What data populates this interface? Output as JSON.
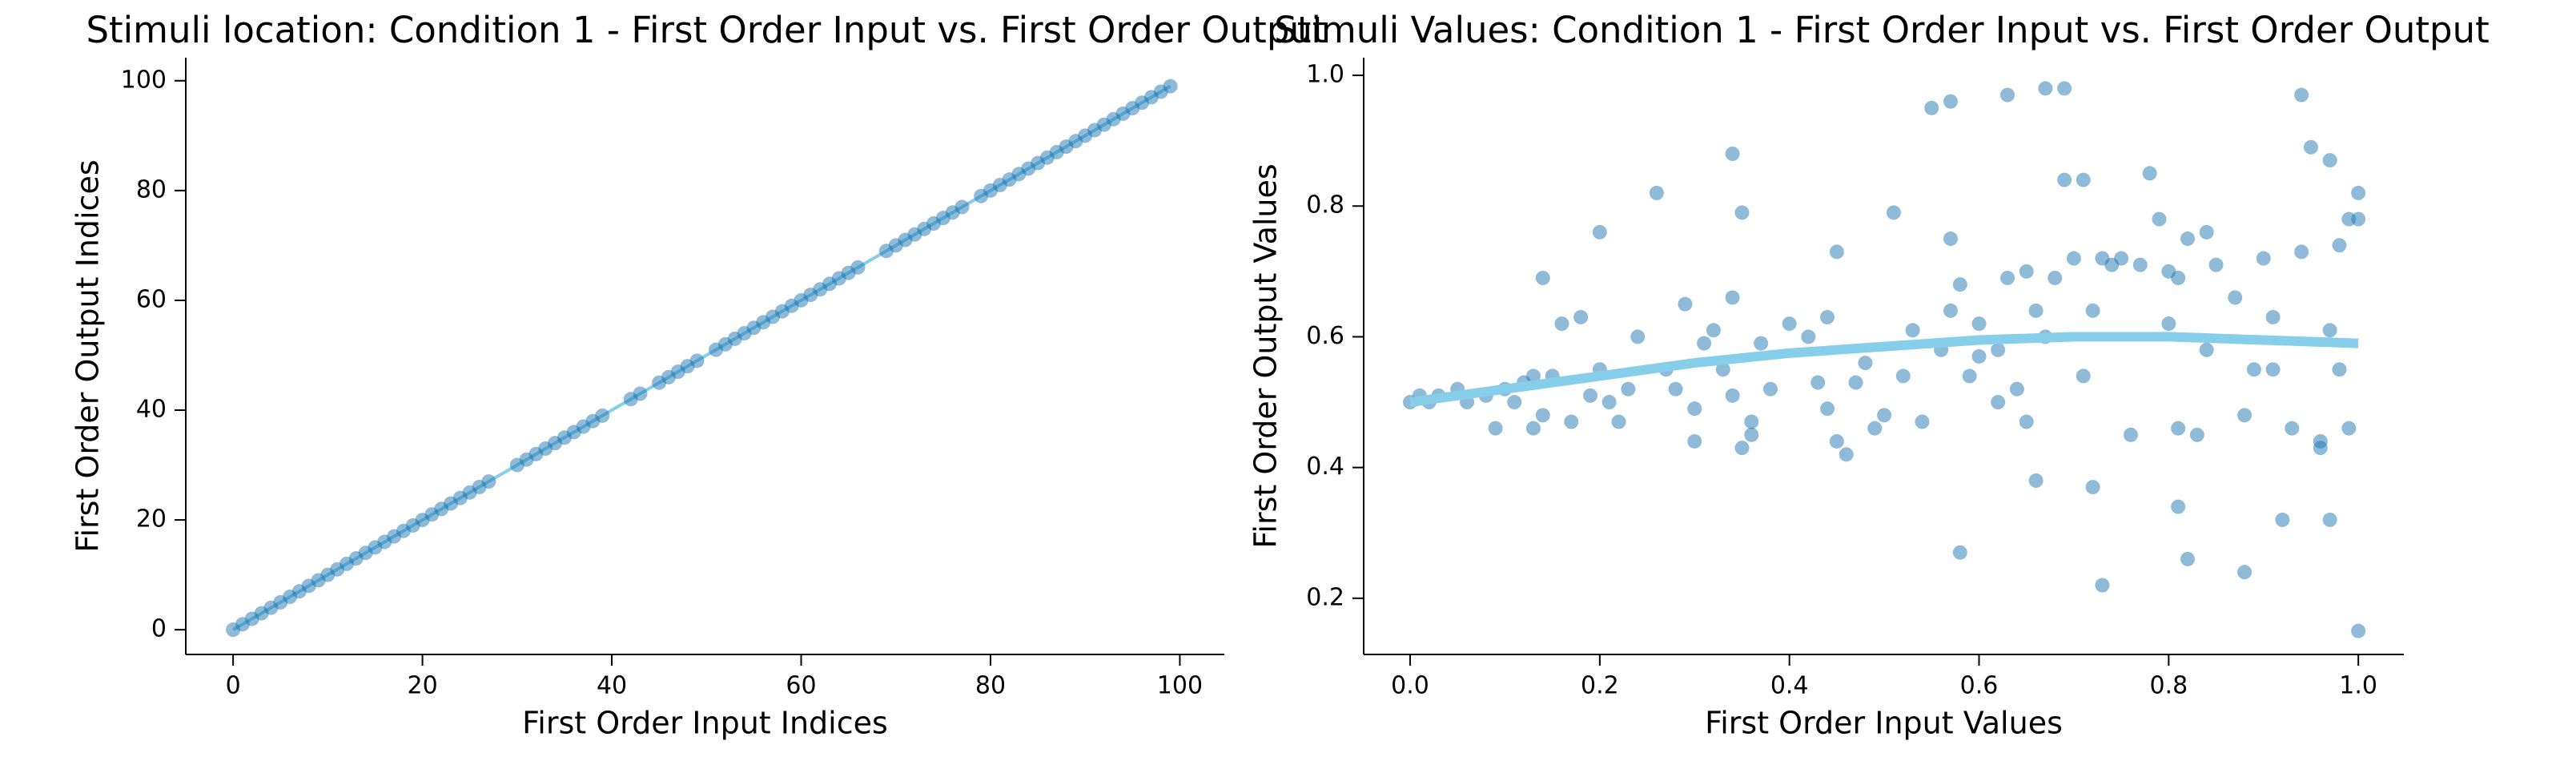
{
  "chart_data": [
    {
      "type": "scatter",
      "title": "Stimuli location: Condition 1 - First Order Input vs. First Order Output",
      "xlabel": "First Order Input Indices",
      "ylabel": "First Order Output Indices",
      "xlim": [
        -5,
        104.7
      ],
      "ylim": [
        -4.5,
        104.2
      ],
      "xticks": [
        0,
        20,
        40,
        60,
        80,
        100
      ],
      "yticks": [
        0,
        20,
        40,
        60,
        80,
        100
      ],
      "series": [
        {
          "color": "#1f77b4",
          "line_color": "#87ceeb",
          "line": true,
          "markers": true,
          "x": [
            0,
            1,
            2,
            3,
            4,
            5,
            6,
            7,
            8,
            9,
            10,
            11,
            12,
            13,
            14,
            15,
            16,
            17,
            18,
            19,
            20,
            21,
            22,
            23,
            24,
            25,
            26,
            27,
            30,
            31,
            32,
            33,
            34,
            35,
            36,
            37,
            38,
            39,
            42,
            43,
            45,
            46,
            47,
            48,
            49,
            51,
            52,
            53,
            54,
            55,
            56,
            57,
            58,
            59,
            60,
            61,
            62,
            63,
            64,
            65,
            66,
            69,
            70,
            71,
            72,
            73,
            74,
            75,
            76,
            77,
            79,
            80,
            81,
            82,
            83,
            84,
            85,
            86,
            87,
            88,
            89,
            90,
            91,
            92,
            93,
            94,
            95,
            96,
            97,
            98,
            99
          ],
          "y": [
            0,
            1,
            2,
            3,
            4,
            5,
            6,
            7,
            8,
            9,
            10,
            11,
            12,
            13,
            14,
            15,
            16,
            17,
            18,
            19,
            20,
            21,
            22,
            23,
            24,
            25,
            26,
            27,
            30,
            31,
            32,
            33,
            34,
            35,
            36,
            37,
            38,
            39,
            42,
            43,
            45,
            46,
            47,
            48,
            49,
            51,
            52,
            53,
            54,
            55,
            56,
            57,
            58,
            59,
            60,
            61,
            62,
            63,
            64,
            65,
            66,
            69,
            70,
            71,
            72,
            73,
            74,
            75,
            76,
            77,
            79,
            80,
            81,
            82,
            83,
            84,
            85,
            86,
            87,
            88,
            89,
            90,
            91,
            92,
            93,
            94,
            95,
            96,
            97,
            98,
            99
          ]
        }
      ]
    },
    {
      "type": "scatter",
      "title": "Stimuli Values: Condition 1 - First Order Input vs. First Order Output",
      "xlabel": "First Order Input Values",
      "ylabel": "First Order Output Values",
      "xlim": [
        -0.049,
        1.048
      ],
      "ylim": [
        0.114,
        1.027
      ],
      "xticks": [
        {
          "value": 0,
          "label": "0.0"
        },
        0.2,
        0.4,
        0.6,
        0.8,
        {
          "value": 1,
          "label": "1.0"
        }
      ],
      "yticks": [
        0.2,
        0.4,
        0.6,
        0.8,
        {
          "value": 1,
          "label": "1.0"
        }
      ],
      "series": [
        {
          "color": "#1f77b4",
          "line": false,
          "markers": true,
          "x": [
            0.0,
            0.01,
            0.02,
            0.03,
            0.05,
            0.06,
            0.08,
            0.09,
            0.1,
            0.11,
            0.12,
            0.13,
            0.13,
            0.14,
            0.14,
            0.15,
            0.16,
            0.17,
            0.18,
            0.19,
            0.2,
            0.2,
            0.21,
            0.22,
            0.23,
            0.24,
            0.26,
            0.27,
            0.28,
            0.29,
            0.3,
            0.3,
            0.31,
            0.32,
            0.33,
            0.34,
            0.34,
            0.34,
            0.35,
            0.35,
            0.36,
            0.36,
            0.37,
            0.38,
            0.4,
            0.42,
            0.43,
            0.44,
            0.44,
            0.45,
            0.45,
            0.46,
            0.47,
            0.48,
            0.49,
            0.5,
            0.51,
            0.52,
            0.53,
            0.54,
            0.55,
            0.56,
            0.57,
            0.57,
            0.57,
            0.58,
            0.58,
            0.59,
            0.6,
            0.6,
            0.62,
            0.62,
            0.63,
            0.63,
            0.64,
            0.65,
            0.65,
            0.66,
            0.66,
            0.67,
            0.67,
            0.68,
            0.69,
            0.69,
            0.7,
            0.71,
            0.71,
            0.72,
            0.72,
            0.73,
            0.73,
            0.74,
            0.75,
            0.76,
            0.77,
            0.78,
            0.79,
            0.8,
            0.8,
            0.81,
            0.81,
            0.81,
            0.82,
            0.82,
            0.83,
            0.84,
            0.84,
            0.85,
            0.87,
            0.88,
            0.88,
            0.89,
            0.9,
            0.91,
            0.91,
            0.92,
            0.93,
            0.94,
            0.94,
            0.95,
            0.96,
            0.96,
            0.97,
            0.97,
            0.97,
            0.98,
            0.98,
            0.99,
            0.99,
            1.0,
            1.0,
            1.0
          ],
          "y": [
            0.5,
            0.51,
            0.5,
            0.51,
            0.52,
            0.5,
            0.51,
            0.46,
            0.52,
            0.5,
            0.53,
            0.46,
            0.54,
            0.48,
            0.69,
            0.54,
            0.62,
            0.47,
            0.63,
            0.51,
            0.55,
            0.76,
            0.5,
            0.47,
            0.52,
            0.6,
            0.82,
            0.55,
            0.52,
            0.65,
            0.49,
            0.44,
            0.59,
            0.61,
            0.55,
            0.66,
            0.51,
            0.88,
            0.43,
            0.79,
            0.47,
            0.45,
            0.59,
            0.52,
            0.62,
            0.6,
            0.53,
            0.49,
            0.63,
            0.44,
            0.73,
            0.42,
            0.53,
            0.56,
            0.46,
            0.48,
            0.79,
            0.54,
            0.61,
            0.47,
            0.95,
            0.58,
            0.75,
            0.96,
            0.64,
            0.68,
            0.27,
            0.54,
            0.62,
            0.57,
            0.58,
            0.5,
            0.69,
            0.97,
            0.52,
            0.7,
            0.47,
            0.64,
            0.38,
            0.6,
            0.98,
            0.69,
            0.98,
            0.84,
            0.72,
            0.84,
            0.54,
            0.64,
            0.37,
            0.72,
            0.22,
            0.71,
            0.72,
            0.45,
            0.71,
            0.85,
            0.78,
            0.7,
            0.62,
            0.46,
            0.69,
            0.34,
            0.75,
            0.26,
            0.45,
            0.76,
            0.58,
            0.71,
            0.66,
            0.48,
            0.24,
            0.55,
            0.72,
            0.63,
            0.55,
            0.32,
            0.46,
            0.73,
            0.97,
            0.89,
            0.44,
            0.43,
            0.87,
            0.32,
            0.61,
            0.74,
            0.55,
            0.78,
            0.46,
            0.82,
            0.78,
            0.15
          ]
        },
        {
          "color": "#87ceeb",
          "line": true,
          "markers": false,
          "x": [
            0,
            0.1,
            0.2,
            0.3,
            0.4,
            0.5,
            0.6,
            0.7,
            0.8,
            0.9,
            1.0
          ],
          "y": [
            0.5,
            0.52,
            0.54,
            0.56,
            0.575,
            0.585,
            0.595,
            0.6,
            0.6,
            0.595,
            0.59
          ]
        }
      ]
    }
  ]
}
